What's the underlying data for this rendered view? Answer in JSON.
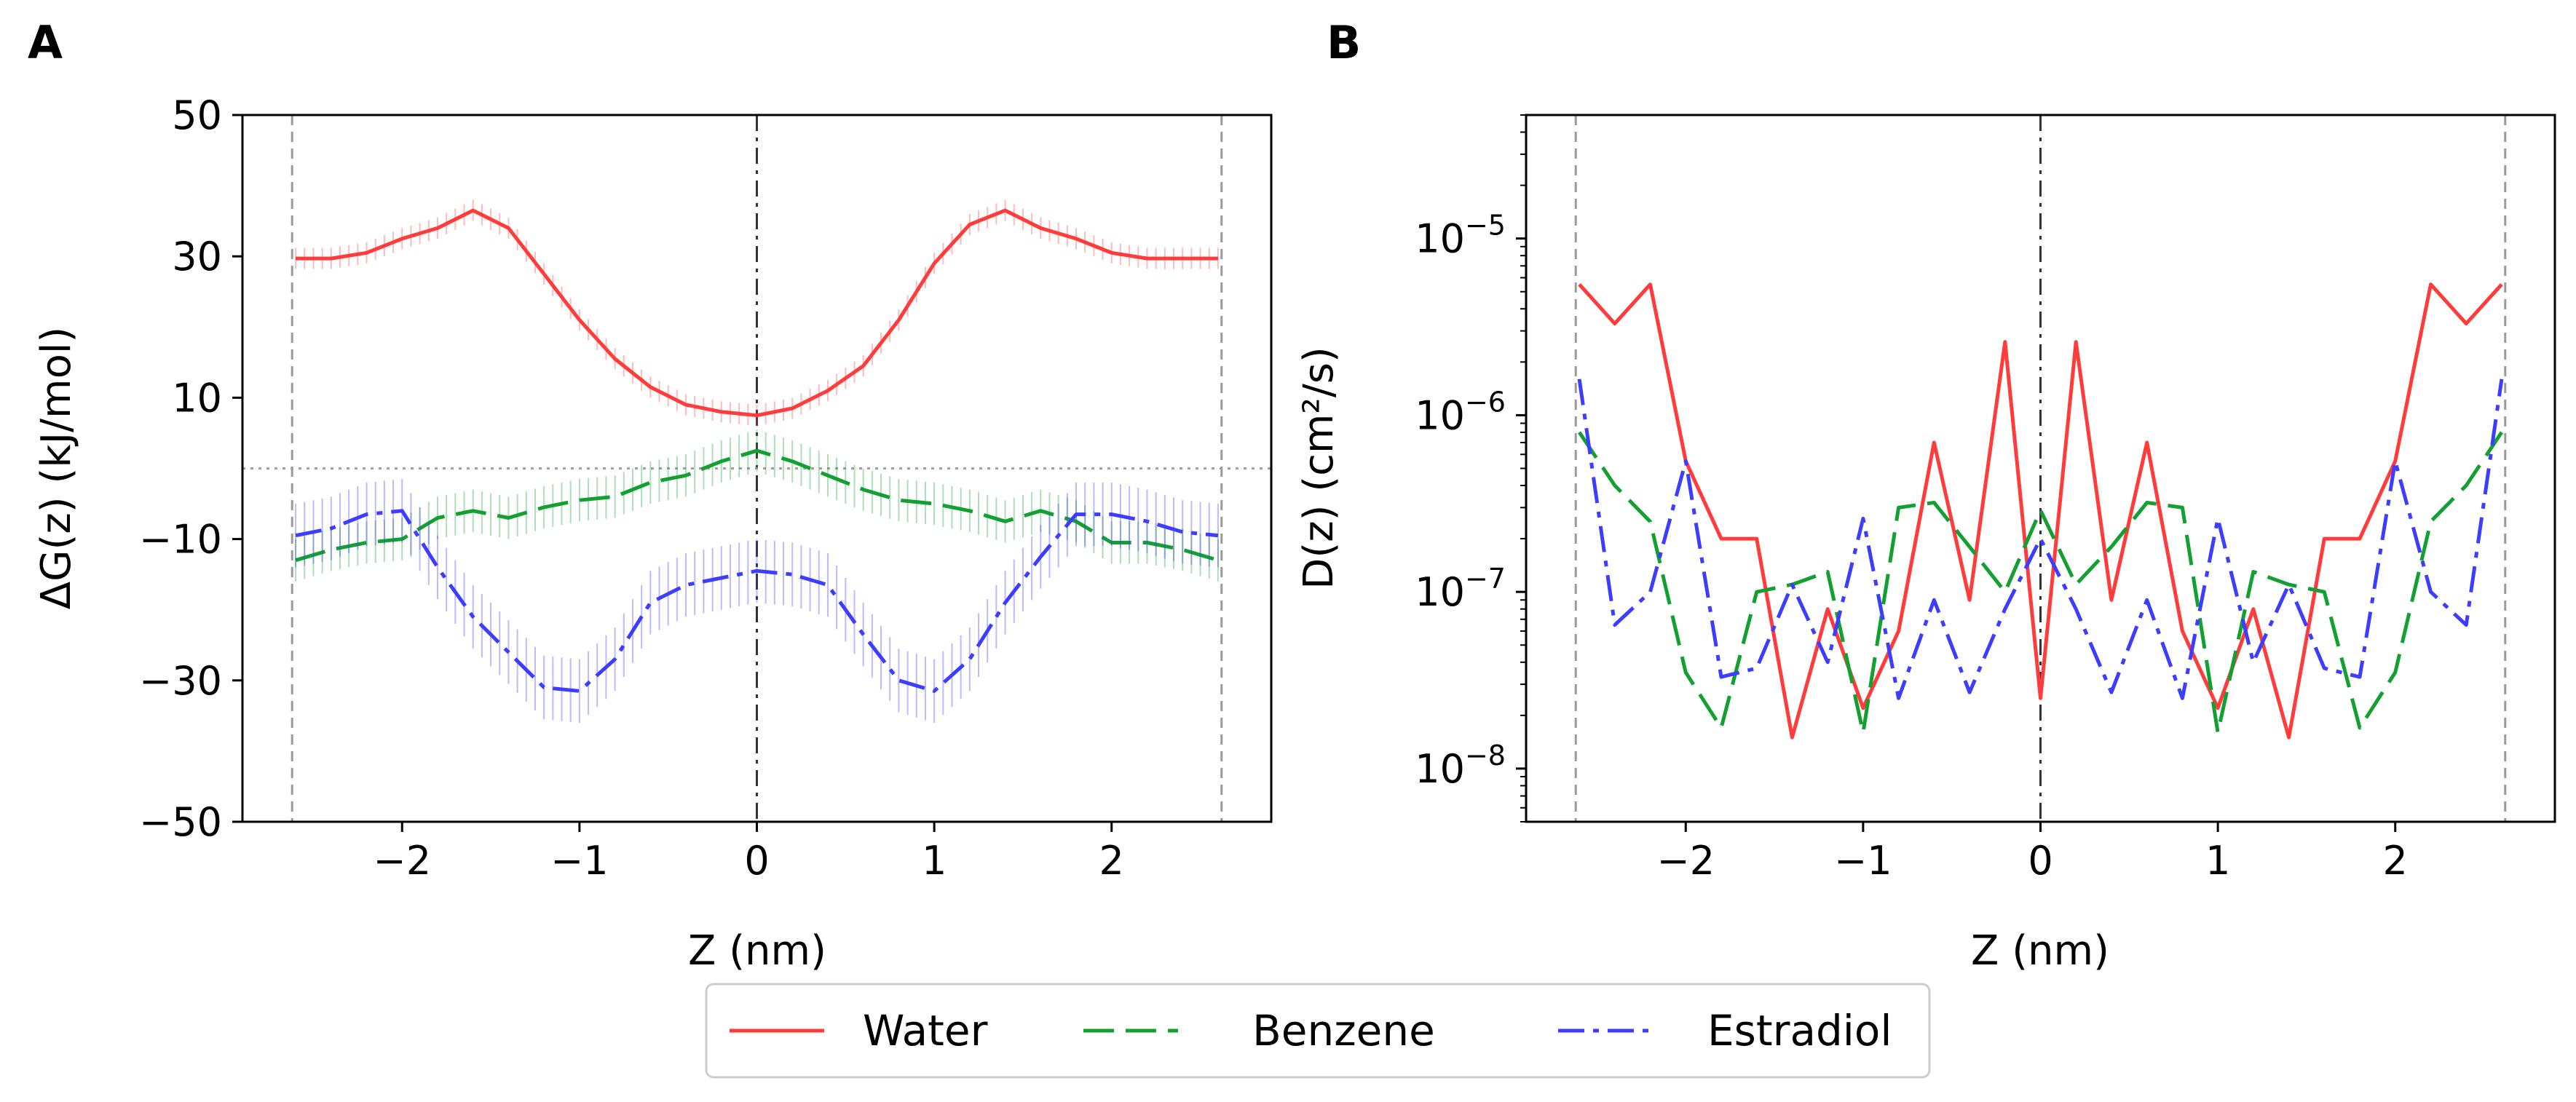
{
  "figure": {
    "panels": [
      "A",
      "B"
    ]
  },
  "legend": {
    "entries": [
      {
        "label": "Water",
        "color": "#ff3b3b"
      },
      {
        "label": "Benzene",
        "color": "#12a030"
      },
      {
        "label": "Estradiol",
        "color": "#3d3dff"
      }
    ]
  },
  "chart_data": [
    {
      "panel": "A",
      "type": "line",
      "title": "",
      "xlabel": "Z (nm)",
      "ylabel": "ΔG(z) (kJ/mol)",
      "xlim": [
        -2.9,
        2.9
      ],
      "ylim": [
        -50,
        50
      ],
      "xticks": [
        -2,
        -1,
        0,
        1,
        2
      ],
      "xtick_labels": [
        "−2",
        "−1",
        "0",
        "1",
        "2"
      ],
      "yticks": [
        50,
        30,
        10,
        -10,
        -30,
        -50
      ],
      "ytick_labels": [
        "50",
        "30",
        "10",
        "−10",
        "−30",
        "−50"
      ],
      "reference_lines": {
        "vertical_dashed": [
          -2.62,
          2.62
        ],
        "vertical_dashdot": [
          0
        ],
        "horizontal_dotted": [
          0
        ]
      },
      "series": [
        {
          "name": "Water",
          "style": "solid",
          "x": [
            -2.6,
            -2.4,
            -2.2,
            -2.0,
            -1.8,
            -1.6,
            -1.4,
            -1.2,
            -1.0,
            -0.8,
            -0.6,
            -0.4,
            -0.2,
            0.0,
            0.2,
            0.4,
            0.6,
            0.8,
            1.0,
            1.2,
            1.4,
            1.6,
            1.8,
            2.0,
            2.2,
            2.4,
            2.6
          ],
          "y": [
            29.7,
            29.7,
            30.5,
            32.5,
            34.0,
            36.5,
            34.0,
            27.5,
            21.0,
            15.5,
            11.5,
            9.0,
            8.0,
            7.5,
            8.5,
            11.0,
            14.5,
            21.0,
            29.0,
            34.5,
            36.5,
            34.0,
            32.5,
            30.5,
            29.7,
            29.7,
            29.7
          ],
          "error": 1.5
        },
        {
          "name": "Benzene",
          "style": "dashed",
          "x": [
            -2.6,
            -2.4,
            -2.2,
            -2.0,
            -1.8,
            -1.6,
            -1.4,
            -1.2,
            -1.0,
            -0.8,
            -0.6,
            -0.4,
            -0.2,
            0.0,
            0.2,
            0.4,
            0.6,
            0.8,
            1.0,
            1.2,
            1.4,
            1.6,
            1.8,
            2.0,
            2.2,
            2.4,
            2.6
          ],
          "y": [
            -13.0,
            -11.5,
            -10.5,
            -10.0,
            -7.0,
            -6.0,
            -7.0,
            -5.5,
            -4.5,
            -4.0,
            -2.0,
            -1.0,
            1.0,
            2.5,
            1.0,
            -1.0,
            -3.0,
            -4.5,
            -5.0,
            -6.0,
            -7.5,
            -6.0,
            -7.5,
            -10.5,
            -10.5,
            -11.5,
            -13.0
          ],
          "error": 3.0
        },
        {
          "name": "Estradiol",
          "style": "dashdot",
          "x": [
            -2.6,
            -2.4,
            -2.2,
            -2.0,
            -1.8,
            -1.6,
            -1.4,
            -1.2,
            -1.0,
            -0.8,
            -0.6,
            -0.4,
            -0.2,
            0.0,
            0.2,
            0.4,
            0.6,
            0.8,
            1.0,
            1.2,
            1.4,
            1.6,
            1.8,
            2.0,
            2.2,
            2.4,
            2.6
          ],
          "y": [
            -9.5,
            -8.5,
            -6.5,
            -6.0,
            -14.0,
            -21.0,
            -26.0,
            -31.0,
            -31.5,
            -27.0,
            -19.0,
            -16.5,
            -15.5,
            -14.5,
            -15.0,
            -16.5,
            -23.5,
            -30.0,
            -31.5,
            -27.0,
            -19.0,
            -12.5,
            -6.5,
            -6.5,
            -7.5,
            -9.0,
            -9.5
          ],
          "error": 4.5
        }
      ]
    },
    {
      "panel": "B",
      "type": "line",
      "title": "",
      "xlabel": "Z (nm)",
      "ylabel": "D(z) (cm²/s)",
      "yscale": "log",
      "xlim": [
        -2.9,
        2.9
      ],
      "ylim": [
        5e-09,
        5e-05
      ],
      "xticks": [
        -2,
        -1,
        0,
        1,
        2
      ],
      "xtick_labels": [
        "−2",
        "−1",
        "0",
        "1",
        "2"
      ],
      "yticks": [
        -5,
        -6,
        -7,
        -8
      ],
      "ytick_labels": [
        {
          "base": "10",
          "exp": "−5"
        },
        {
          "base": "10",
          "exp": "−6"
        },
        {
          "base": "10",
          "exp": "−7"
        },
        {
          "base": "10",
          "exp": "−8"
        }
      ],
      "reference_lines": {
        "vertical_dashed": [
          -2.62,
          2.62
        ],
        "vertical_dashdot": [
          0
        ]
      },
      "series": [
        {
          "name": "Water",
          "style": "solid",
          "x": [
            -2.6,
            -2.4,
            -2.2,
            -2.0,
            -1.8,
            -1.6,
            -1.4,
            -1.2,
            -1.0,
            -0.8,
            -0.6,
            -0.4,
            -0.2,
            0.0,
            0.2,
            0.4,
            0.6,
            0.8,
            1.0,
            1.2,
            1.4,
            1.6,
            1.8,
            2.0,
            2.2,
            2.4,
            2.6
          ],
          "y": [
            5.5e-06,
            3.3e-06,
            5.5e-06,
            5.5e-07,
            2e-07,
            2e-07,
            1.5e-08,
            8e-08,
            2.2e-08,
            6e-08,
            7e-07,
            9e-08,
            2.6e-06,
            2.5e-08,
            2.6e-06,
            9e-08,
            7e-07,
            6e-08,
            2.2e-08,
            8e-08,
            1.5e-08,
            2e-07,
            2e-07,
            5.5e-07,
            5.5e-06,
            3.3e-06,
            5.5e-06
          ]
        },
        {
          "name": "Benzene",
          "style": "dashed",
          "x": [
            -2.6,
            -2.4,
            -2.2,
            -2.0,
            -1.8,
            -1.6,
            -1.4,
            -1.2,
            -1.0,
            -0.8,
            -0.6,
            -0.4,
            -0.2,
            0.0,
            0.2,
            0.4,
            0.6,
            0.8,
            1.0,
            1.2,
            1.4,
            1.6,
            1.8,
            2.0,
            2.2,
            2.4,
            2.6
          ],
          "y": [
            8e-07,
            4e-07,
            2.5e-07,
            3.5e-08,
            1.7e-08,
            1e-07,
            1.1e-07,
            1.3e-07,
            1.6e-08,
            3e-07,
            3.2e-07,
            1.8e-07,
            1e-07,
            2.9e-07,
            1.1e-07,
            1.8e-07,
            3.2e-07,
            3e-07,
            1.6e-08,
            1.3e-07,
            1.1e-07,
            1e-07,
            1.7e-08,
            3.5e-08,
            2.5e-07,
            4e-07,
            8e-07
          ]
        },
        {
          "name": "Estradiol",
          "style": "dashdot",
          "x": [
            -2.6,
            -2.4,
            -2.2,
            -2.0,
            -1.8,
            -1.6,
            -1.4,
            -1.2,
            -1.0,
            -0.8,
            -0.6,
            -0.4,
            -0.2,
            0.0,
            0.2,
            0.4,
            0.6,
            0.8,
            1.0,
            1.2,
            1.4,
            1.6,
            1.8,
            2.0,
            2.2,
            2.4,
            2.6
          ],
          "y": [
            1.6e-06,
            6.5e-08,
            1e-07,
            5.5e-07,
            3.3e-08,
            3.7e-08,
            1.1e-07,
            4e-08,
            2.6e-07,
            2.5e-08,
            9e-08,
            2.7e-08,
            8e-08,
            2e-07,
            8e-08,
            2.7e-08,
            9e-08,
            2.5e-08,
            2.6e-07,
            4e-08,
            1.1e-07,
            3.7e-08,
            3.3e-08,
            5.5e-07,
            1e-07,
            6.5e-08,
            1.6e-06
          ]
        }
      ]
    }
  ]
}
